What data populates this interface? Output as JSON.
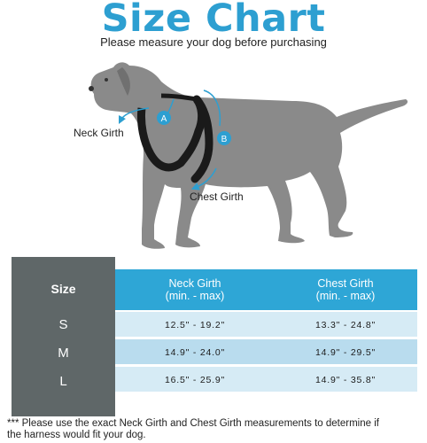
{
  "title": "Size Chart",
  "subtitle": "Please measure your dog before purchasing",
  "diagram": {
    "neck_label": "Neck Girth",
    "chest_label": "Chest Girth",
    "marker_a": "A",
    "marker_b": "B"
  },
  "colors": {
    "accent": "#2d9fd1",
    "dog": "#8a8a8a",
    "harness": "#1a1a1a",
    "size_column": "#5f6768",
    "row_light": "#d6ebf5",
    "row_dark": "#b9dcee"
  },
  "table": {
    "headers": {
      "size": "Size",
      "neck_line1": "Neck Girth",
      "neck_line2": "(min. - max)",
      "chest_line1": "Chest Girth",
      "chest_line2": "(min. - max)"
    },
    "rows": [
      {
        "size": "S",
        "neck": "12.5\" - 19.2\"",
        "chest": "13.3\" - 24.8\""
      },
      {
        "size": "M",
        "neck": "14.9\" - 24.0\"",
        "chest": "14.9\" - 29.5\""
      },
      {
        "size": "L",
        "neck": "16.5\" - 25.9\"",
        "chest": "14.9\" - 35.8\""
      }
    ]
  },
  "note": {
    "line1": "***  Please use the exact Neck Girth and Chest Girth measurements to determine if",
    "line2": "the harness would fit your dog."
  }
}
